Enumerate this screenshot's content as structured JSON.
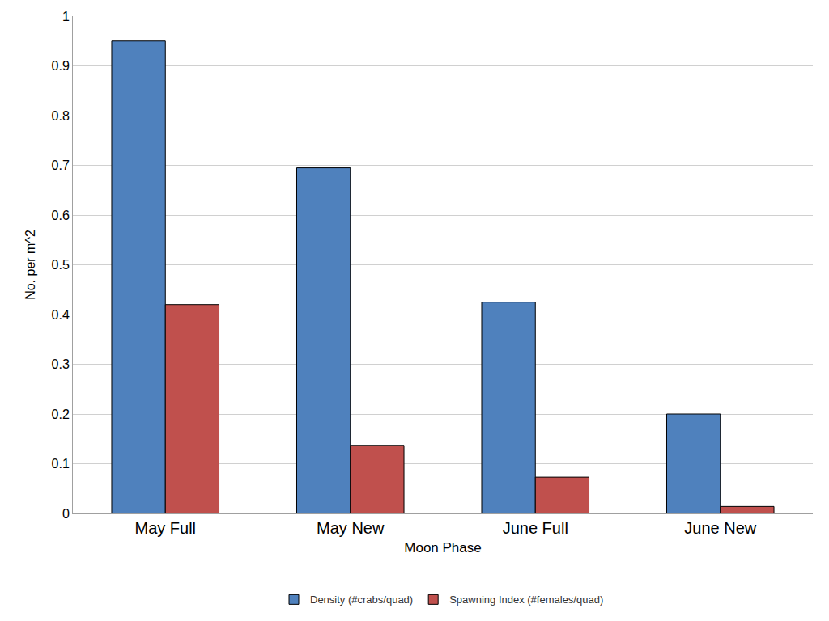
{
  "chart_data": {
    "type": "bar",
    "x_label": "Moon Phase",
    "y_label": "No. per m^2",
    "categories": [
      "May Full",
      "May New",
      "June Full",
      "June New"
    ],
    "series": [
      {
        "name": "Density (#crabs/quad)",
        "color": "#4f81bd",
        "values": [
          0.95,
          0.695,
          0.425,
          0.2
        ]
      },
      {
        "name": "Spawning Index (#females/quad)",
        "color": "#c0504d",
        "values": [
          0.42,
          0.137,
          0.073,
          0.014
        ]
      }
    ],
    "ylim": [
      0,
      1
    ],
    "yticks": [
      0,
      0.1,
      0.2,
      0.3,
      0.4,
      0.5,
      0.6,
      0.7,
      0.8,
      0.9,
      1
    ],
    "grid": true,
    "legend": "bottom"
  }
}
